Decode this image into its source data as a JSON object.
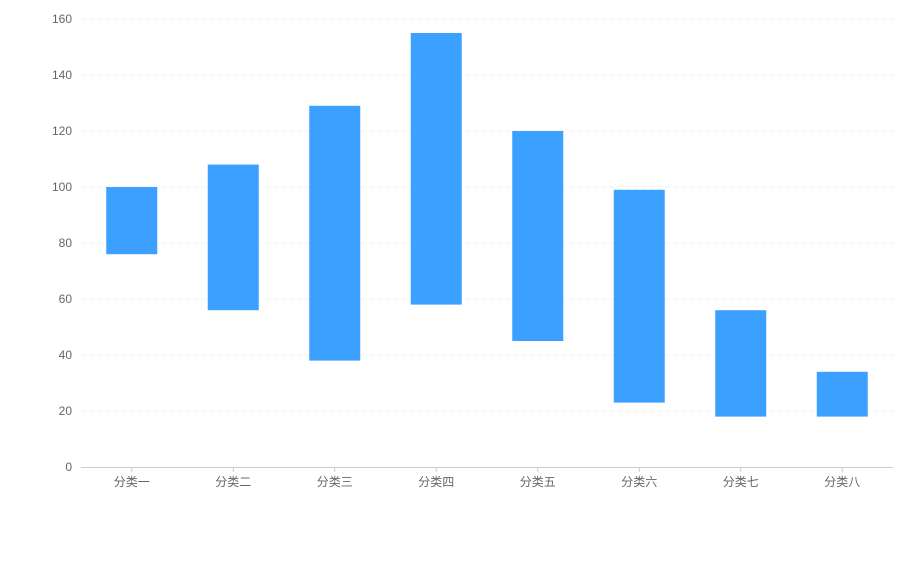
{
  "chart_data": {
    "type": "bar",
    "subtype": "floating-range",
    "categories": [
      "分类一",
      "分类二",
      "分类三",
      "分类四",
      "分类五",
      "分类六",
      "分类七",
      "分类八"
    ],
    "ranges": [
      [
        76,
        100
      ],
      [
        56,
        108
      ],
      [
        38,
        129
      ],
      [
        58,
        155
      ],
      [
        45,
        120
      ],
      [
        23,
        99
      ],
      [
        18,
        56
      ],
      [
        18,
        34
      ]
    ],
    "yticks": [
      "0",
      "20",
      "40",
      "60",
      "80",
      "100",
      "120",
      "140",
      "160"
    ],
    "ylim": [
      0,
      160
    ],
    "grid": true,
    "grid_style": "dashed",
    "title": "",
    "xlabel": "",
    "ylabel": "",
    "colors": {
      "bar": "#3ba0ff",
      "grid": "#eeeeee",
      "axis": "#cccccc",
      "tick_label": "#666666"
    }
  }
}
